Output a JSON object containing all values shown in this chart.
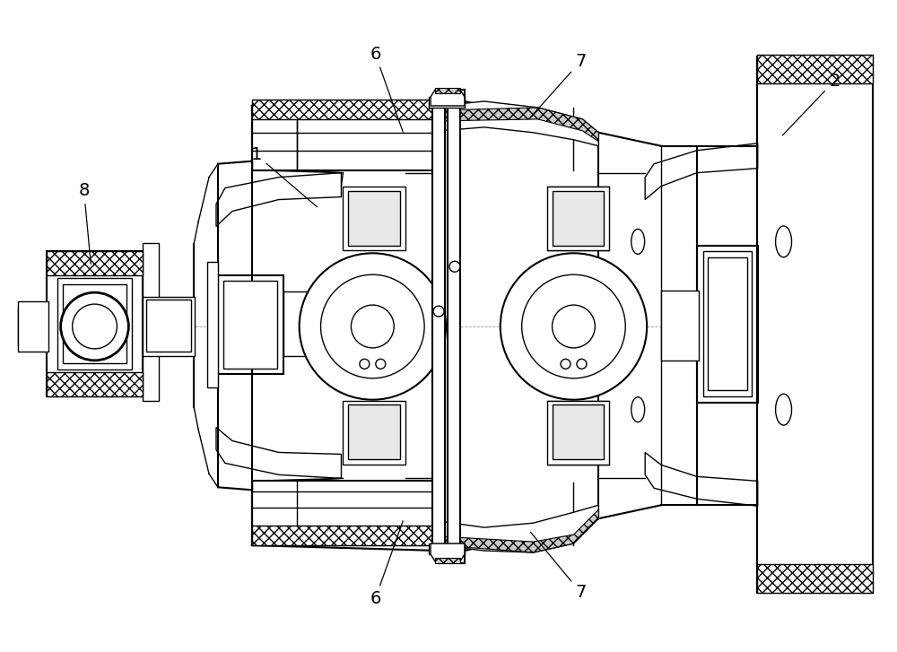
{
  "bg_color": "#ffffff",
  "line_color": "#000000",
  "figsize": [
    10.0,
    7.27
  ],
  "dpi": 100,
  "labels": {
    "1": [
      0.285,
      0.555,
      0.355,
      0.495
    ],
    "2": [
      0.932,
      0.638,
      0.872,
      0.575
    ],
    "6t": [
      0.418,
      0.868,
      0.45,
      0.778
    ],
    "6b": [
      0.418,
      0.125,
      0.45,
      0.218
    ],
    "7t": [
      0.648,
      0.06,
      0.59,
      0.148
    ],
    "7b": [
      0.648,
      0.938,
      0.59,
      0.85
    ],
    "8": [
      0.092,
      0.715,
      0.1,
      0.63
    ]
  }
}
